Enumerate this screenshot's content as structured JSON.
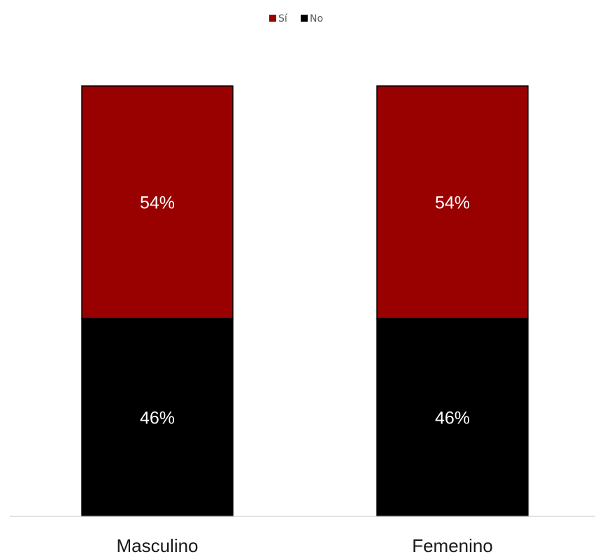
{
  "chart_data": {
    "type": "bar",
    "stacked": true,
    "orientation": "vertical",
    "categories": [
      "Masculino",
      "Femenino"
    ],
    "series": [
      {
        "name": "No",
        "values": [
          46,
          46
        ],
        "color": "#000000",
        "labels": [
          "46%",
          "46%"
        ]
      },
      {
        "name": "Sí",
        "values": [
          54,
          54
        ],
        "color": "#990000",
        "labels": [
          "54%",
          "54%"
        ]
      }
    ],
    "ylim": [
      0,
      100
    ],
    "value_unit": "%",
    "grid": false,
    "legend": {
      "position": "top-center",
      "entries": [
        "Sí",
        "No"
      ]
    }
  }
}
